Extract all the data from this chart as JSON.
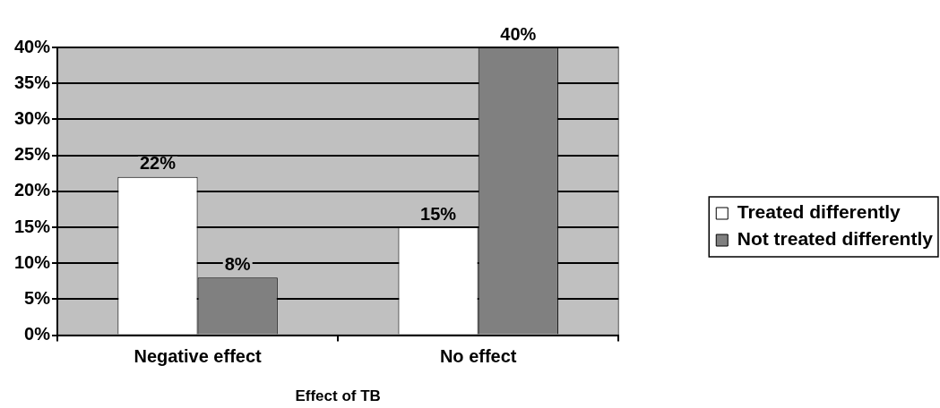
{
  "chart_data": {
    "type": "bar",
    "xlabel": "Effect of TB",
    "categories": [
      "Negative effect",
      "No effect"
    ],
    "series": [
      {
        "name": "Treated differently",
        "color": "#ffffff",
        "values": [
          22,
          15
        ],
        "value_labels": [
          "22%",
          "15%"
        ]
      },
      {
        "name": "Not treated differently",
        "color": "#808080",
        "values": [
          8,
          40
        ],
        "value_labels": [
          "8%",
          "40%"
        ]
      }
    ],
    "ylim": [
      0,
      40
    ],
    "yticks": [
      {
        "value": 0,
        "label": "0%"
      },
      {
        "value": 5,
        "label": "5%"
      },
      {
        "value": 10,
        "label": "10%"
      },
      {
        "value": 15,
        "label": "15%"
      },
      {
        "value": 20,
        "label": "20%"
      },
      {
        "value": 25,
        "label": "25%"
      },
      {
        "value": 30,
        "label": "30%"
      },
      {
        "value": 35,
        "label": "35%"
      },
      {
        "value": 40,
        "label": "40%"
      }
    ],
    "grid": "y",
    "legend": "right"
  }
}
